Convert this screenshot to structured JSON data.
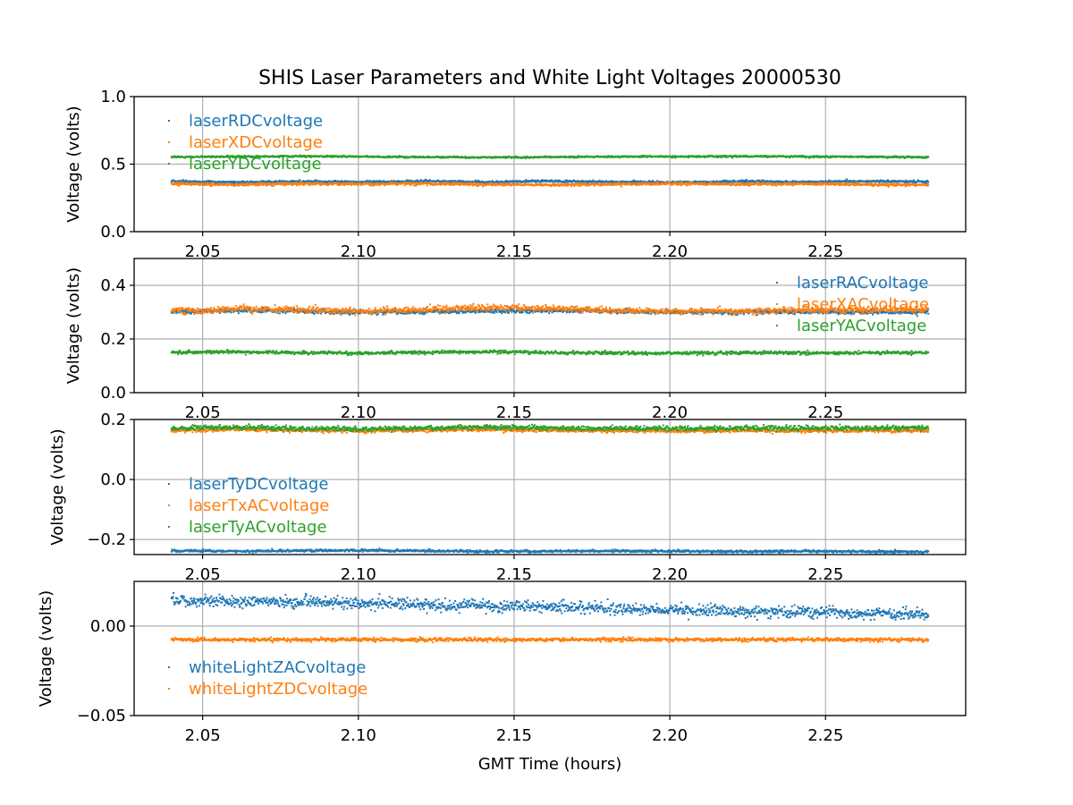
{
  "chart_data": {
    "type": "scatter",
    "title": "SHIS Laser Parameters and White Light Voltages 20000530",
    "xlabel": "GMT Time (hours)",
    "x_range": [
      2.04,
      2.283
    ],
    "xlim": [
      2.028,
      2.295
    ],
    "xticks": [
      2.05,
      2.1,
      2.15,
      2.2,
      2.25
    ],
    "xtick_labels": [
      "2.05",
      "2.10",
      "2.15",
      "2.20",
      "2.25"
    ],
    "grid": true,
    "subplots": [
      {
        "ylabel": "Voltage (volts)",
        "ylim": [
          0.0,
          1.0
        ],
        "yticks": [
          0.0,
          0.5,
          1.0
        ],
        "ytick_labels": [
          "0.0",
          "0.5",
          "1.0"
        ],
        "legend_placement": "upper-left",
        "series": [
          {
            "name": "laserRDCvoltage",
            "color": "#1f77b4",
            "level": [
              0.373,
              0.365,
              0.372,
              0.367,
              0.374,
              0.368,
              0.375,
              0.369,
              0.365,
              0.372,
              0.368,
              0.374,
              0.37
            ],
            "noise": 0.004
          },
          {
            "name": "laserXDCvoltage",
            "color": "#ff7f0e",
            "level": [
              0.355,
              0.347,
              0.355,
              0.352,
              0.357,
              0.35,
              0.346,
              0.352,
              0.356,
              0.351,
              0.354,
              0.35,
              0.346
            ],
            "noise": 0.005
          },
          {
            "name": "laserYDCvoltage",
            "color": "#2ca02c",
            "level": [
              0.553,
              0.556,
              0.558,
              0.556,
              0.552,
              0.55,
              0.552,
              0.555,
              0.556,
              0.558,
              0.556,
              0.554,
              0.552
            ],
            "noise": 0.003
          }
        ]
      },
      {
        "ylabel": "Voltage (volts)",
        "ylim": [
          0.0,
          0.5
        ],
        "yticks": [
          0.0,
          0.2,
          0.4
        ],
        "ytick_labels": [
          "0.0",
          "0.2",
          "0.4"
        ],
        "legend_placement": "upper-right",
        "series": [
          {
            "name": "laserRACvoltage",
            "color": "#1f77b4",
            "level": [
              0.3,
              0.306,
              0.304,
              0.3,
              0.302,
              0.304,
              0.306,
              0.303,
              0.3,
              0.3,
              0.302,
              0.3,
              0.301
            ],
            "noise": 0.004
          },
          {
            "name": "laserXACvoltage",
            "color": "#ff7f0e",
            "level": [
              0.305,
              0.312,
              0.309,
              0.303,
              0.31,
              0.317,
              0.314,
              0.307,
              0.305,
              0.304,
              0.306,
              0.308,
              0.31
            ],
            "noise": 0.006
          },
          {
            "name": "laserYACvoltage",
            "color": "#2ca02c",
            "level": [
              0.15,
              0.152,
              0.149,
              0.147,
              0.15,
              0.153,
              0.149,
              0.148,
              0.147,
              0.149,
              0.148,
              0.149,
              0.149
            ],
            "noise": 0.003
          }
        ]
      },
      {
        "ylabel": "Voltage (volts)",
        "ylim": [
          -0.25,
          0.2
        ],
        "yticks": [
          -0.2,
          0.0,
          0.2
        ],
        "ytick_labels": [
          "−0.2",
          "0.0",
          "0.2"
        ],
        "legend_placement": "center-left",
        "series": [
          {
            "name": "laserTyDCvoltage",
            "color": "#1f77b4",
            "level": [
              -0.237,
              -0.239,
              -0.237,
              -0.236,
              -0.238,
              -0.24,
              -0.239,
              -0.238,
              -0.239,
              -0.24,
              -0.239,
              -0.24,
              -0.241
            ],
            "noise": 0.002
          },
          {
            "name": "laserTxACvoltage",
            "color": "#ff7f0e",
            "level": [
              0.163,
              0.167,
              0.164,
              0.162,
              0.164,
              0.167,
              0.164,
              0.162,
              0.162,
              0.163,
              0.162,
              0.163,
              0.163
            ],
            "noise": 0.003
          },
          {
            "name": "laserTyACvoltage",
            "color": "#2ca02c",
            "level": [
              0.17,
              0.175,
              0.17,
              0.168,
              0.171,
              0.176,
              0.172,
              0.17,
              0.17,
              0.171,
              0.171,
              0.171,
              0.172
            ],
            "noise": 0.004
          }
        ]
      },
      {
        "ylabel": "Voltage (volts)",
        "ylim": [
          -0.05,
          0.025
        ],
        "yticks": [
          -0.05,
          0.0
        ],
        "ytick_labels": [
          "−0.05",
          "0.00"
        ],
        "legend_placement": "lower-left",
        "series": [
          {
            "name": "whiteLightZACvoltage",
            "color": "#1f77b4",
            "level": [
              0.0145,
              0.014,
              0.0133,
              0.0127,
              0.012,
              0.0113,
              0.0106,
              0.0099,
              0.0091,
              0.0083,
              0.0076,
              0.0069,
              0.0063
            ],
            "noise": 0.0016
          },
          {
            "name": "whiteLightZDCvoltage",
            "color": "#ff7f0e",
            "level": [
              -0.0075,
              -0.0076,
              -0.0076,
              -0.0075,
              -0.0076,
              -0.0075,
              -0.0076,
              -0.0075,
              -0.0076,
              -0.0075,
              -0.0076,
              -0.0075,
              -0.0076
            ],
            "noise": 0.0005
          }
        ]
      }
    ]
  }
}
